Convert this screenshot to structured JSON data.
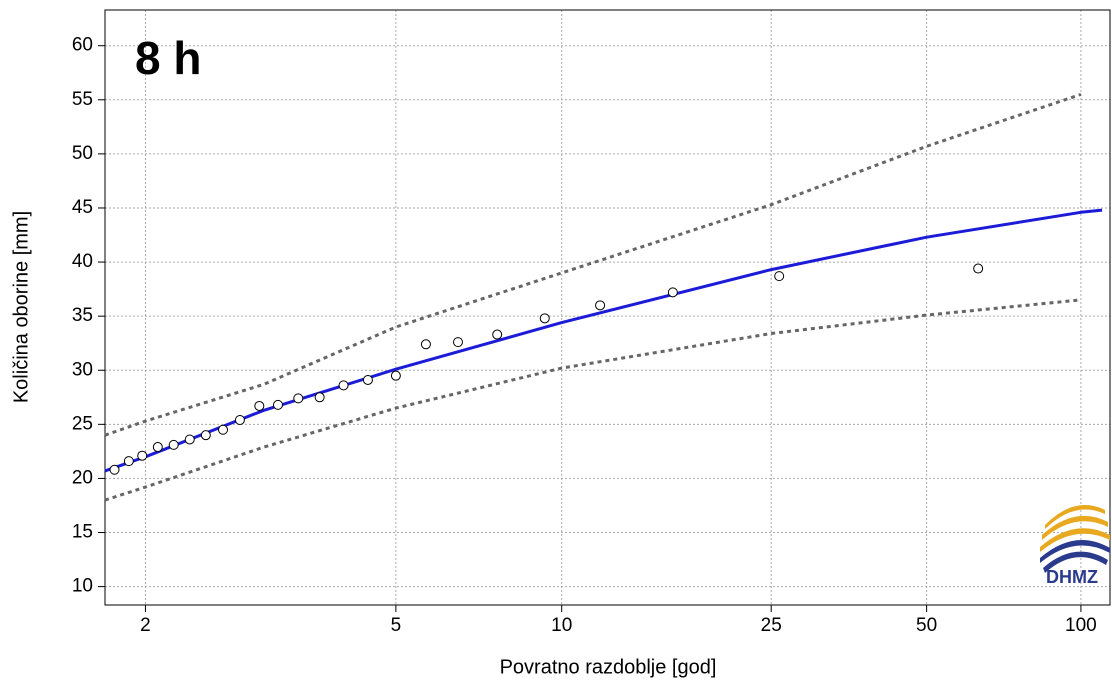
{
  "chart_data": {
    "type": "scatter",
    "annotation": "8 h",
    "x_label": "Povratno razdoblje [god]",
    "y_label": "Količina oborine [mm]",
    "logo_text": "DHMZ",
    "xscale": "gumbel",
    "grid": true,
    "xlim": [
      1.77,
      114
    ],
    "ylim": [
      8.3,
      63.3
    ],
    "xticks": [
      2,
      5,
      10,
      25,
      50,
      100
    ],
    "yticks": [
      10,
      15,
      20,
      25,
      30,
      35,
      40,
      45,
      50,
      55,
      60
    ],
    "points": {
      "color": "#000000",
      "x": [
        1.82,
        1.9,
        1.98,
        2.08,
        2.19,
        2.31,
        2.44,
        2.59,
        2.75,
        2.95,
        3.16,
        3.41,
        3.7,
        4.06,
        4.47,
        5.0,
        5.65,
        6.45,
        7.6,
        9.3,
        11.8,
        16.2,
        25.9,
        63
      ],
      "values": [
        20.8,
        21.6,
        22.1,
        22.9,
        23.1,
        23.6,
        24.0,
        24.5,
        25.4,
        26.7,
        26.8,
        27.4,
        27.5,
        28.6,
        29.1,
        29.5,
        32.4,
        32.6,
        33.3,
        34.8,
        36.0,
        37.2,
        38.7,
        39.4
      ]
    },
    "series": [
      {
        "color": "#1c1cd8",
        "style": "solid",
        "x": [
          1.77,
          2,
          3,
          5,
          10,
          25,
          50,
          100,
          110
        ],
        "values": [
          20.7,
          22.0,
          26.3,
          30.1,
          34.4,
          39.3,
          42.3,
          44.6,
          44.8
        ]
      },
      {
        "color": "#666666",
        "style": "dashed",
        "x": [
          1.77,
          2,
          3,
          5,
          10,
          25,
          50,
          100
        ],
        "values": [
          24.0,
          25.3,
          28.7,
          34.0,
          39.0,
          45.3,
          50.7,
          55.5
        ]
      },
      {
        "color": "#666666",
        "style": "dashed",
        "x": [
          1.77,
          2,
          3,
          5,
          10,
          25,
          50,
          100
        ],
        "values": [
          18.0,
          19.2,
          22.9,
          26.5,
          30.2,
          33.4,
          35.1,
          36.5
        ]
      }
    ]
  }
}
